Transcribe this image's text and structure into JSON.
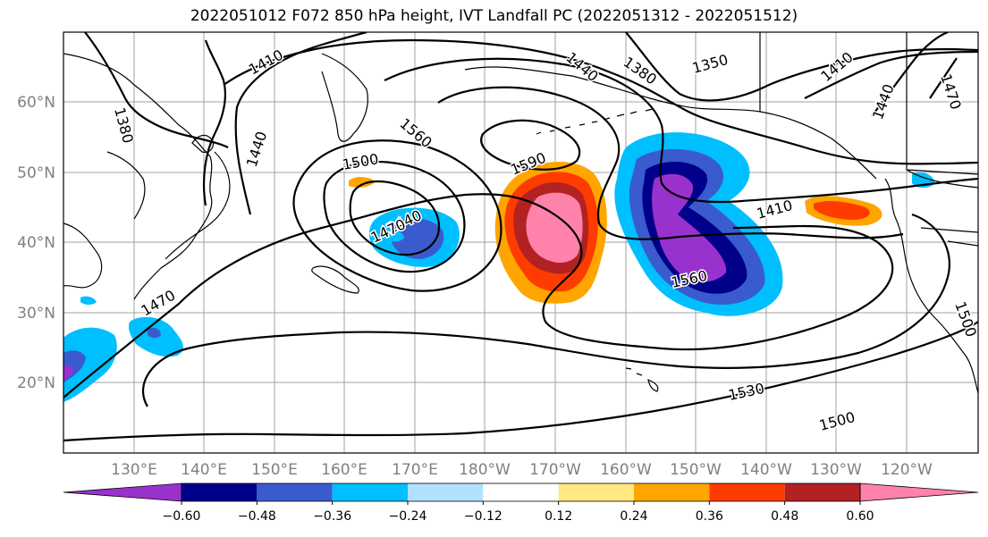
{
  "title": "2022051012 F072 850 hPa height, IVT Landfall PC (2022051312 - 2022051512)",
  "lat_labels": [
    "60°N",
    "50°N",
    "40°N",
    "30°N",
    "20°N"
  ],
  "lon_labels": [
    "130°E",
    "140°E",
    "150°E",
    "160°E",
    "170°E",
    "180°W",
    "170°W",
    "160°W",
    "150°W",
    "140°W",
    "130°W",
    "120°W"
  ],
  "contour_labels": [
    "1410",
    "1380",
    "1440",
    "1500",
    "1560",
    "1590",
    "1440",
    "1470",
    "1470",
    "1440",
    "1380",
    "1350",
    "1410",
    "1440",
    "1470",
    "1410",
    "1560",
    "1530",
    "1500",
    "1500"
  ],
  "colorbar": {
    "ticks": [
      "−0.60",
      "−0.48",
      "−0.36",
      "−0.24",
      "−0.12",
      "0.12",
      "0.24",
      "0.36",
      "0.48",
      "0.60"
    ],
    "colors": [
      "#9932cc",
      "#00008b",
      "#3a5bcd",
      "#00bfff",
      "#b0e2ff",
      "#ffffff",
      "#ffe980",
      "#ffa500",
      "#ff3c00",
      "#b22222",
      "#ff82ab"
    ]
  },
  "colors": {
    "land": "#000000",
    "contour": "#000000",
    "grid": "#a0a0a0",
    "axis_label": "#808080"
  }
}
